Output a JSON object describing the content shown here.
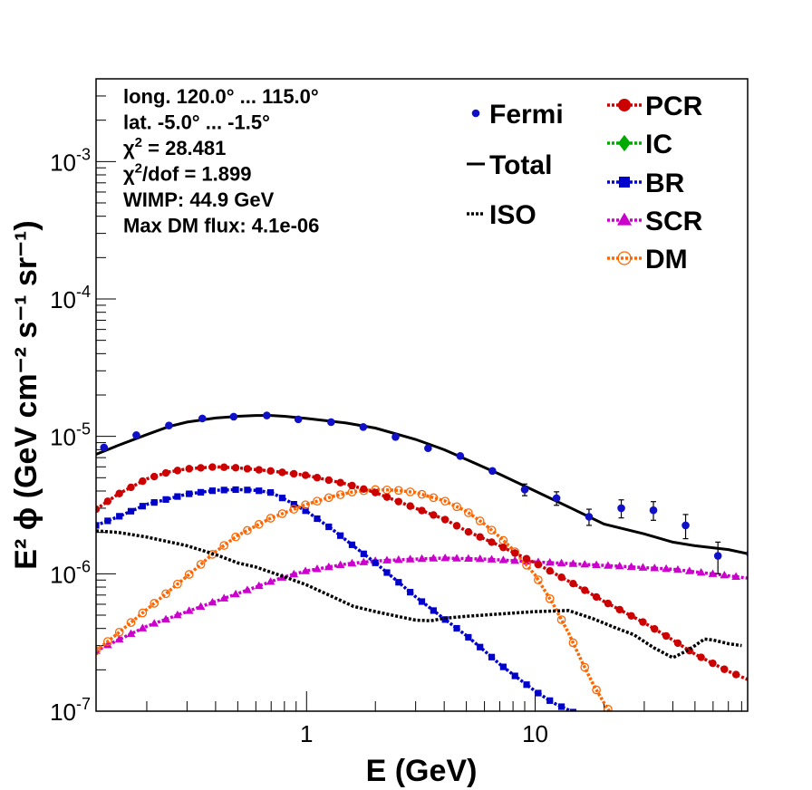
{
  "chart_data": {
    "type": "line",
    "title": "",
    "xlabel": "E (GeV)",
    "ylabel": "E² ϕ (GeV cm⁻² s⁻¹ sr⁻¹)",
    "xscale": "log",
    "yscale": "log",
    "xlim": [
      0.12,
      85
    ],
    "ylim": [
      1e-07,
      0.004
    ],
    "x_tick_labels": [
      {
        "value": 1,
        "label": "1"
      },
      {
        "value": 10,
        "label": "10"
      }
    ],
    "y_tick_labels": [
      {
        "value": 1e-07,
        "base": "10",
        "exp": "-7"
      },
      {
        "value": 1e-06,
        "base": "10",
        "exp": "-6"
      },
      {
        "value": 1e-05,
        "base": "10",
        "exp": "-5"
      },
      {
        "value": 0.0001,
        "base": "10",
        "exp": "-4"
      },
      {
        "value": 0.001,
        "base": "10",
        "exp": "-3"
      }
    ],
    "annotations": [
      {
        "id": "long",
        "text": "long. 120.0° ... 115.0°"
      },
      {
        "id": "lat",
        "text": "lat. -5.0° ... -1.5°"
      },
      {
        "id": "chi2",
        "pre": "χ",
        "sup": "2",
        "post": " = 28.481"
      },
      {
        "id": "chi2dof",
        "pre": "χ",
        "sup": "2",
        "post": "/dof = 1.899"
      },
      {
        "id": "wimp",
        "text": "WIMP: 44.9 GeV"
      },
      {
        "id": "maxdm",
        "text": "Max DM flux: 4.1e-06"
      }
    ],
    "legend_placement": "top-right",
    "series": [
      {
        "name": "Fermi",
        "style": "points",
        "color": "#1010c8",
        "marker": "circle",
        "x": [
          0.13,
          0.18,
          0.25,
          0.35,
          0.48,
          0.67,
          0.92,
          1.28,
          1.77,
          2.45,
          3.4,
          4.7,
          6.5,
          9.0,
          12.4,
          17.2,
          23.8,
          32.9,
          45.5,
          63.0,
          87.0
        ],
        "y": [
          8.3e-06,
          1.02e-05,
          1.2e-05,
          1.35e-05,
          1.39e-05,
          1.42e-05,
          1.33e-05,
          1.27e-05,
          1.17e-05,
          9.9e-06,
          8.2e-06,
          7.2e-06,
          5.6e-06,
          4.1e-06,
          3.55e-06,
          2.6e-06,
          3e-06,
          2.9e-06,
          2.25e-06,
          1.35e-06,
          1.4e-06
        ],
        "err": [
          0,
          0,
          0,
          0,
          0,
          0,
          0,
          0,
          0,
          0,
          0,
          0,
          0,
          4e-07,
          4e-07,
          3.5e-07,
          4.5e-07,
          4.5e-07,
          4.5e-07,
          3.5e-07,
          4.5e-07
        ]
      },
      {
        "name": "Total",
        "style": "line",
        "color": "#000000",
        "x": [
          0.12,
          0.15,
          0.2,
          0.25,
          0.3,
          0.4,
          0.5,
          0.6,
          0.7,
          0.8,
          1.0,
          1.5,
          2.0,
          3.0,
          4.0,
          5.0,
          7.0,
          10,
          15,
          20,
          30,
          40,
          50,
          70,
          85
        ],
        "y": [
          7.4e-06,
          8.6e-06,
          1.03e-05,
          1.18e-05,
          1.27e-05,
          1.36e-05,
          1.4e-05,
          1.42e-05,
          1.42e-05,
          1.4e-05,
          1.35e-05,
          1.25e-05,
          1.15e-05,
          9.5e-06,
          8e-06,
          6.8e-06,
          5.3e-06,
          4e-06,
          2.9e-06,
          2.3e-06,
          1.95e-06,
          1.7e-06,
          1.6e-06,
          1.5e-06,
          1.4e-06
        ]
      },
      {
        "name": "ISO",
        "style": "dotted",
        "color": "#000000",
        "x": [
          0.12,
          0.15,
          0.2,
          0.3,
          0.4,
          0.5,
          0.6,
          0.8,
          1.0,
          1.3,
          1.6,
          2.0,
          2.5,
          3.0,
          3.5,
          4.0,
          5.0,
          7.0,
          10,
          14,
          18,
          22,
          27,
          33,
          40,
          45,
          50,
          55,
          60,
          70,
          80
        ],
        "y": [
          2.05e-06,
          2e-06,
          1.85e-06,
          1.6e-06,
          1.38e-06,
          1.2e-06,
          1.12e-06,
          9.5e-07,
          8.3e-07,
          6.8e-07,
          5.8e-07,
          5.3e-07,
          4.9e-07,
          4.6e-07,
          4.55e-07,
          4.75e-07,
          4.9e-07,
          5.1e-07,
          5.3e-07,
          5.4e-07,
          4.7e-07,
          4.1e-07,
          3.6e-07,
          2.9e-07,
          2.45e-07,
          2.7e-07,
          3e-07,
          3.35e-07,
          3.3e-07,
          3.1e-07,
          3e-07
        ]
      },
      {
        "name": "PCR",
        "style": "line-markers",
        "color": "#cc0000",
        "marker": "circle",
        "x": [
          0.12,
          0.15,
          0.2,
          0.25,
          0.3,
          0.4,
          0.5,
          0.7,
          1.0,
          1.5,
          2.0,
          3.0,
          4.0,
          5.0,
          7.0,
          10,
          15,
          20,
          30,
          40,
          50,
          70,
          85
        ],
        "y": [
          2.95e-06,
          3.8e-06,
          4.9e-06,
          5.5e-06,
          5.8e-06,
          6e-06,
          5.9e-06,
          5.6e-06,
          5.2e-06,
          4.5e-06,
          3.9e-06,
          3e-06,
          2.5e-06,
          2.05e-06,
          1.6e-06,
          1.2e-06,
          8.3e-07,
          6.3e-07,
          4.4e-07,
          3.3e-07,
          2.6e-07,
          1.95e-07,
          1.7e-07
        ]
      },
      {
        "name": "IC",
        "style": "line-markers",
        "color": "#00aa00",
        "marker": "diamond",
        "x": [],
        "y": []
      },
      {
        "name": "BR",
        "style": "line-markers",
        "color": "#0000cc",
        "marker": "square",
        "x": [
          0.12,
          0.15,
          0.2,
          0.3,
          0.4,
          0.5,
          0.6,
          0.7,
          0.8,
          1.0,
          1.3,
          1.6,
          2.0,
          2.5,
          3.0,
          4.0,
          5.0,
          6.0,
          7.0,
          8.0,
          10,
          12,
          14,
          16
        ],
        "y": [
          2.25e-06,
          2.6e-06,
          3.2e-06,
          3.8e-06,
          4.05e-06,
          4.1e-06,
          4.05e-06,
          3.9e-06,
          3.5e-06,
          2.85e-06,
          2.1e-06,
          1.6e-06,
          1.2e-06,
          8.8e-07,
          6.8e-07,
          4.7e-07,
          3.55e-07,
          2.75e-07,
          2.2e-07,
          1.85e-07,
          1.4e-07,
          1.15e-07,
          1.02e-07,
          9.2e-08
        ]
      },
      {
        "name": "SCR",
        "style": "line-markers",
        "color": "#cc00cc",
        "marker": "triangle",
        "x": [
          0.12,
          0.15,
          0.2,
          0.3,
          0.4,
          0.6,
          0.8,
          1.0,
          1.5,
          2.0,
          3.0,
          4.0,
          6.0,
          10,
          20,
          40,
          85
        ],
        "y": [
          2.75e-07,
          3.3e-07,
          4.15e-07,
          5.3e-07,
          6.3e-07,
          8e-07,
          9.5e-07,
          1.05e-06,
          1.18e-06,
          1.24e-06,
          1.28e-06,
          1.3e-06,
          1.28e-06,
          1.22e-06,
          1.15e-06,
          1.08e-06,
          9.3e-07
        ]
      },
      {
        "name": "DM",
        "style": "line-markers",
        "color": "#ff6600",
        "marker": "open-circle",
        "x": [
          0.12,
          0.15,
          0.2,
          0.3,
          0.4,
          0.5,
          0.7,
          1.0,
          1.3,
          1.6,
          2.0,
          2.5,
          3.0,
          4.0,
          5.0,
          6.0,
          7.0,
          8.0,
          10,
          12,
          14,
          16,
          18,
          20,
          21.5
        ],
        "y": [
          2.75e-07,
          3.7e-07,
          5.5e-07,
          9.6e-07,
          1.45e-06,
          1.9e-06,
          2.55e-06,
          3.2e-06,
          3.65e-06,
          3.95e-06,
          4.1e-06,
          4.05e-06,
          3.9e-06,
          3.4e-06,
          2.85e-06,
          2.3e-06,
          1.85e-06,
          1.5e-06,
          9.8e-07,
          6e-07,
          3.7e-07,
          2.3e-07,
          1.55e-07,
          1.15e-07,
          9.5e-08
        ]
      }
    ]
  }
}
